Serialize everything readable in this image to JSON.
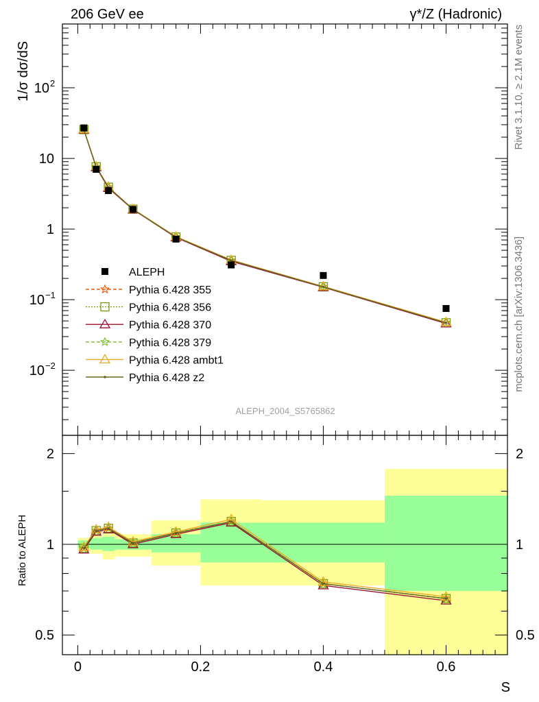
{
  "header": {
    "left_title": "206 GeV ee",
    "right_title": "γ*/Z (Hadronic)"
  },
  "side_labels": {
    "top": "Rivet 3.1.10, ≥ 2.1M events",
    "bottom": "mcplots.cern.ch [arXiv:1306.3436]"
  },
  "watermark": "ALEPH_2004_S5765862",
  "chart_data": [
    {
      "type": "scatter",
      "panel": "main",
      "ylabel": "1/σ dσ/dS",
      "y_scale": "log",
      "ylim": [
        0.0012,
        800
      ],
      "xlim": [
        -0.025,
        0.7
      ],
      "y_ticks": [
        {
          "value": 100,
          "mant": "10",
          "exp": "2"
        },
        {
          "value": 10,
          "mant": "10",
          "exp": ""
        },
        {
          "value": 1,
          "mant": "1",
          "exp": ""
        },
        {
          "value": 0.1,
          "mant": "10",
          "exp": "−1"
        },
        {
          "value": 0.01,
          "mant": "10",
          "exp": "−2"
        }
      ],
      "data": {
        "name": "ALEPH",
        "x": [
          0.01,
          0.03,
          0.05,
          0.09,
          0.16,
          0.25,
          0.4,
          0.6
        ],
        "y": [
          27,
          7.0,
          3.5,
          1.9,
          0.72,
          0.31,
          0.22,
          0.075
        ]
      },
      "x": [
        0.01,
        0.03,
        0.05,
        0.09,
        0.16,
        0.25,
        0.4,
        0.6
      ],
      "series": [
        {
          "name": "Pythia 6.428 355",
          "color": "#ee5500",
          "dash": "5,3",
          "marker": "star",
          "values": [
            25.5,
            7.6,
            3.9,
            1.9,
            0.77,
            0.36,
            0.152,
            0.047
          ]
        },
        {
          "name": "Pythia 6.428 356",
          "color": "#779911",
          "dash": "2,2",
          "marker": "square",
          "values": [
            25.6,
            7.6,
            3.9,
            1.91,
            0.77,
            0.36,
            0.152,
            0.047
          ]
        },
        {
          "name": "Pythia 6.428 370",
          "color": "#991133",
          "dash": "",
          "marker": "triangle",
          "values": [
            25.4,
            7.5,
            3.8,
            1.89,
            0.76,
            0.35,
            0.15,
            0.046
          ]
        },
        {
          "name": "Pythia 6.428 379",
          "color": "#77bb22",
          "dash": "5,3",
          "marker": "star",
          "values": [
            25.6,
            7.6,
            3.9,
            1.9,
            0.77,
            0.36,
            0.152,
            0.047
          ]
        },
        {
          "name": "Pythia 6.428 ambt1",
          "color": "#eeaa22",
          "dash": "",
          "marker": "triangle",
          "values": [
            25.8,
            7.7,
            3.95,
            1.92,
            0.78,
            0.365,
            0.154,
            0.048
          ]
        },
        {
          "name": "Pythia 6.428 z2",
          "color": "#666622",
          "dash": "",
          "marker": "dot",
          "values": [
            25.5,
            7.6,
            3.9,
            1.9,
            0.77,
            0.36,
            0.152,
            0.047
          ]
        }
      ]
    },
    {
      "type": "line",
      "panel": "ratio",
      "ylabel": "Ratio to ALEPH",
      "xlabel": "S",
      "y_scale": "log",
      "ylim": [
        0.43,
        2.3
      ],
      "xlim": [
        -0.025,
        0.7
      ],
      "y_ticks": [
        {
          "value": 0.5,
          "label": "0.5"
        },
        {
          "value": 1,
          "label": "1"
        },
        {
          "value": 2,
          "label": "2"
        }
      ],
      "x_ticks": [
        {
          "value": 0,
          "label": "0"
        },
        {
          "value": 0.2,
          "label": "0.2"
        },
        {
          "value": 0.4,
          "label": "0.4"
        },
        {
          "value": 0.6,
          "label": "0.6"
        }
      ],
      "bands": [
        {
          "x0": 0.0,
          "x1": 0.02,
          "green": [
            0.97,
            1.03
          ],
          "yellow": [
            0.95,
            1.05
          ]
        },
        {
          "x0": 0.02,
          "x1": 0.04,
          "green": [
            0.96,
            1.05
          ],
          "yellow": [
            0.93,
            1.07
          ]
        },
        {
          "x0": 0.04,
          "x1": 0.06,
          "green": [
            0.95,
            1.06
          ],
          "yellow": [
            0.89,
            1.1
          ]
        },
        {
          "x0": 0.06,
          "x1": 0.12,
          "green": [
            0.96,
            1.04
          ],
          "yellow": [
            0.91,
            1.08
          ]
        },
        {
          "x0": 0.12,
          "x1": 0.2,
          "green": [
            0.94,
            1.08
          ],
          "yellow": [
            0.85,
            1.2
          ]
        },
        {
          "x0": 0.2,
          "x1": 0.3,
          "green": [
            0.87,
            1.18
          ],
          "yellow": [
            0.73,
            1.41
          ]
        },
        {
          "x0": 0.3,
          "x1": 0.5,
          "green": [
            0.87,
            1.18
          ],
          "yellow": [
            0.73,
            1.4
          ]
        },
        {
          "x0": 0.5,
          "x1": 0.7,
          "green": [
            0.7,
            1.45
          ],
          "yellow": [
            0.4,
            1.78
          ]
        }
      ],
      "x": [
        0.01,
        0.03,
        0.05,
        0.09,
        0.16,
        0.25,
        0.4,
        0.6
      ],
      "series": [
        {
          "name": "Pythia 6.428 355",
          "values": [
            0.97,
            1.11,
            1.13,
            1.01,
            1.09,
            1.19,
            0.74,
            0.66
          ]
        },
        {
          "name": "Pythia 6.428 356",
          "values": [
            0.97,
            1.11,
            1.13,
            1.01,
            1.09,
            1.19,
            0.74,
            0.66
          ]
        },
        {
          "name": "Pythia 6.428 370",
          "values": [
            0.96,
            1.1,
            1.12,
            1.0,
            1.08,
            1.18,
            0.73,
            0.65
          ]
        },
        {
          "name": "Pythia 6.428 379",
          "values": [
            0.97,
            1.11,
            1.13,
            1.01,
            1.09,
            1.19,
            0.74,
            0.66
          ]
        },
        {
          "name": "Pythia 6.428 ambt1",
          "values": [
            0.98,
            1.12,
            1.14,
            1.02,
            1.1,
            1.21,
            0.75,
            0.67
          ]
        },
        {
          "name": "Pythia 6.428 z2",
          "values": [
            0.97,
            1.11,
            1.13,
            1.01,
            1.09,
            1.19,
            0.74,
            0.66
          ]
        }
      ]
    }
  ]
}
